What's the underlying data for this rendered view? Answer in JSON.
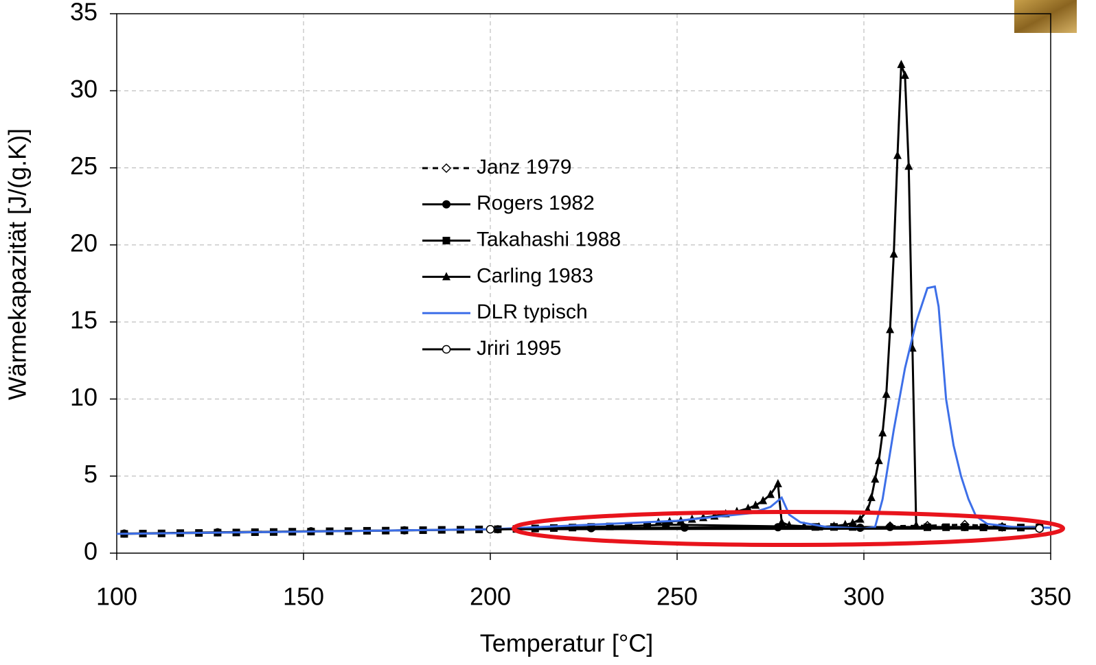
{
  "chart_data": {
    "type": "line",
    "x_label": "Temperatur [°C]",
    "y_label": "Wärmekapazität [J/(g.K)]",
    "xlim": [
      100,
      350
    ],
    "xticks": [
      100,
      150,
      200,
      250,
      300,
      350
    ],
    "ylim": [
      0,
      35
    ],
    "yticks": [
      0,
      5,
      10,
      15,
      20,
      25,
      30,
      35
    ],
    "grid": true,
    "series": [
      {
        "name": "Janz 1979",
        "color": "#000000",
        "dash": true,
        "marker": "diamond",
        "x": [
          307,
          317,
          327,
          337,
          347
        ],
        "values": [
          1.75,
          1.78,
          1.85,
          1.7,
          1.65
        ]
      },
      {
        "name": "Rogers 1982",
        "color": "#000000",
        "dash": false,
        "marker": "circle",
        "x": [
          102,
          127,
          152,
          177,
          202,
          227,
          252,
          277,
          299,
          307,
          327,
          347
        ],
        "values": [
          1.27,
          1.35,
          1.42,
          1.48,
          1.55,
          1.62,
          1.66,
          1.68,
          1.65,
          1.7,
          1.7,
          1.7
        ]
      },
      {
        "name": "Takahashi 1988",
        "color": "#000000",
        "dash": false,
        "marker": "square",
        "x": [
          102,
          107,
          112,
          117,
          122,
          127,
          132,
          137,
          142,
          147,
          152,
          157,
          162,
          167,
          172,
          177,
          182,
          187,
          192,
          197,
          202,
          207,
          212,
          217,
          222,
          227,
          232,
          237,
          242,
          247,
          287,
          292,
          297,
          317,
          322,
          327,
          332,
          337,
          342,
          347
        ],
        "values": [
          1.25,
          1.27,
          1.28,
          1.3,
          1.31,
          1.33,
          1.34,
          1.36,
          1.37,
          1.39,
          1.4,
          1.42,
          1.43,
          1.45,
          1.46,
          1.48,
          1.49,
          1.51,
          1.52,
          1.54,
          1.55,
          1.57,
          1.6,
          1.63,
          1.66,
          1.7,
          1.73,
          1.76,
          1.8,
          1.85,
          1.7,
          1.7,
          1.7,
          1.68,
          1.68,
          1.68,
          1.67,
          1.67,
          1.66,
          1.66
        ]
      },
      {
        "name": "Carling 1983",
        "color": "#000000",
        "dash": false,
        "marker": "triangle",
        "x": [
          245,
          248,
          251,
          254,
          257,
          260,
          263,
          266,
          269,
          271,
          273,
          275,
          277,
          278,
          280,
          284,
          288,
          292,
          295,
          297,
          299,
          301,
          302,
          303,
          304,
          305,
          306,
          307,
          308,
          309,
          310,
          311,
          312,
          313,
          314
        ],
        "values": [
          2.0,
          2.05,
          2.1,
          2.2,
          2.3,
          2.4,
          2.55,
          2.7,
          2.9,
          3.1,
          3.4,
          3.8,
          4.5,
          2.0,
          1.8,
          1.75,
          1.7,
          1.75,
          1.85,
          1.95,
          2.2,
          2.8,
          3.6,
          4.8,
          6.0,
          7.8,
          10.3,
          14.5,
          19.4,
          25.8,
          31.7,
          31.0,
          25.1,
          13.3,
          1.8
        ]
      },
      {
        "name": "DLR typisch",
        "color": "#3d6fe8",
        "dash": false,
        "marker": null,
        "x": [
          100,
          200,
          250,
          270,
          275,
          278,
          280,
          283,
          290,
          300,
          303,
          305,
          308,
          311,
          314,
          317,
          319,
          320,
          322,
          324,
          326,
          328,
          330,
          333,
          340,
          350
        ],
        "values": [
          1.25,
          1.55,
          2.1,
          2.6,
          3.0,
          3.6,
          2.5,
          2.0,
          1.7,
          1.6,
          1.7,
          3.5,
          8.0,
          12.0,
          15.0,
          17.2,
          17.3,
          16.0,
          10.0,
          7.0,
          5.0,
          3.5,
          2.4,
          1.9,
          1.7,
          1.65
        ]
      },
      {
        "name": "Jriri 1995",
        "color": "#000000",
        "dash": false,
        "marker": "open-circle",
        "x": [
          200,
          347
        ],
        "values": [
          1.55,
          1.6
        ]
      }
    ]
  }
}
